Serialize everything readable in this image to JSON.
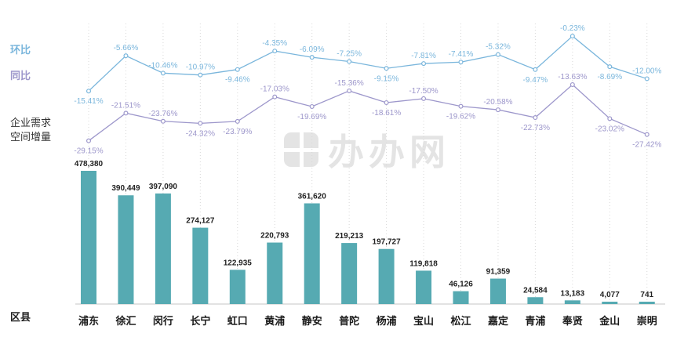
{
  "legend": {
    "huanbi": "环比",
    "tongbi": "同比",
    "ylabel_line1": "企业需求",
    "ylabel_line2": "空间增量",
    "xlabel": "区县"
  },
  "watermark": {
    "text": "办办网"
  },
  "colors": {
    "bar": "#56aab2",
    "huanbi_line": "#7ab6dc",
    "tongbi_line": "#9d97cb",
    "gridline": "#d8d8d8",
    "axis": "#c4c4c4",
    "bar_label": "#222222",
    "category_label": "#1a1a1a"
  },
  "chart_data": {
    "type": "bar",
    "title": "",
    "xlabel": "区县",
    "ylabel": "企业需求空间增量",
    "grid": "vertical-dotted",
    "legend_position": "left",
    "categories": [
      "浦东",
      "徐汇",
      "闵行",
      "长宁",
      "虹口",
      "黄浦",
      "静安",
      "普陀",
      "杨浦",
      "宝山",
      "松江",
      "嘉定",
      "青浦",
      "奉贤",
      "金山",
      "崇明"
    ],
    "series": [
      {
        "name": "环比",
        "type": "line",
        "unit": "%",
        "color": "#7ab6dc",
        "values": [
          -15.41,
          -5.66,
          -10.46,
          -10.97,
          -9.46,
          -4.35,
          -6.09,
          -7.25,
          -9.15,
          -7.81,
          -7.41,
          -5.32,
          -9.47,
          -0.23,
          -8.69,
          -12.0
        ]
      },
      {
        "name": "同比",
        "type": "line",
        "unit": "%",
        "color": "#9d97cb",
        "values": [
          -29.15,
          -21.51,
          -23.76,
          -24.32,
          -23.79,
          -17.03,
          -19.69,
          -15.36,
          -18.61,
          -17.5,
          -19.62,
          -20.58,
          -22.73,
          -13.63,
          -23.02,
          -27.42
        ]
      },
      {
        "name": "企业需求空间增量",
        "type": "bar",
        "color": "#56aab2",
        "values": [
          478380,
          390449,
          397090,
          274127,
          122935,
          220793,
          361620,
          219213,
          197727,
          119818,
          46126,
          91359,
          24584,
          13183,
          4077,
          741
        ]
      }
    ]
  }
}
